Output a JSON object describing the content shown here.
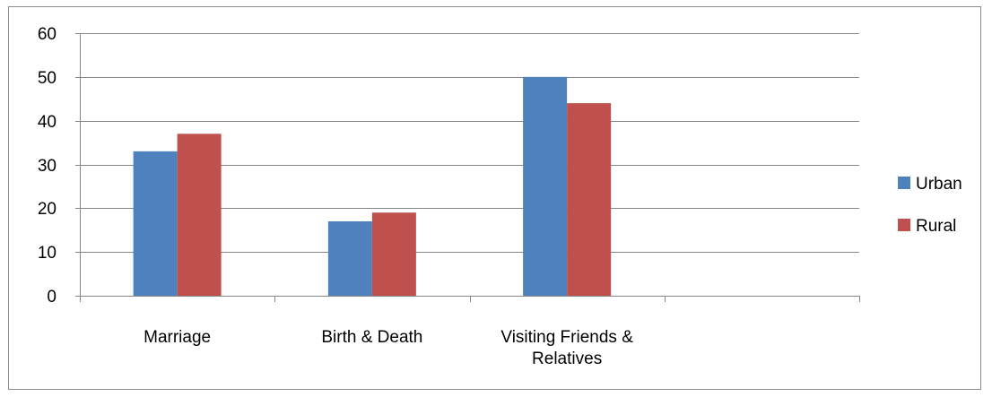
{
  "chart_data": {
    "type": "bar",
    "categories": [
      "Marriage",
      "Birth & Death",
      "Visiting Friends & Relatives",
      ""
    ],
    "series": [
      {
        "name": "Urban",
        "values": [
          33,
          17,
          50,
          null
        ],
        "color": "#4F81BD"
      },
      {
        "name": "Rural",
        "values": [
          37,
          19,
          44,
          null
        ],
        "color": "#C0504D"
      }
    ],
    "y_ticks": [
      "0",
      "10",
      "20",
      "30",
      "40",
      "50",
      "60"
    ],
    "ylim": [
      0,
      60
    ],
    "ystep": 10,
    "grid": true,
    "legend_position": "right",
    "title": "",
    "xlabel": "",
    "ylabel": ""
  }
}
